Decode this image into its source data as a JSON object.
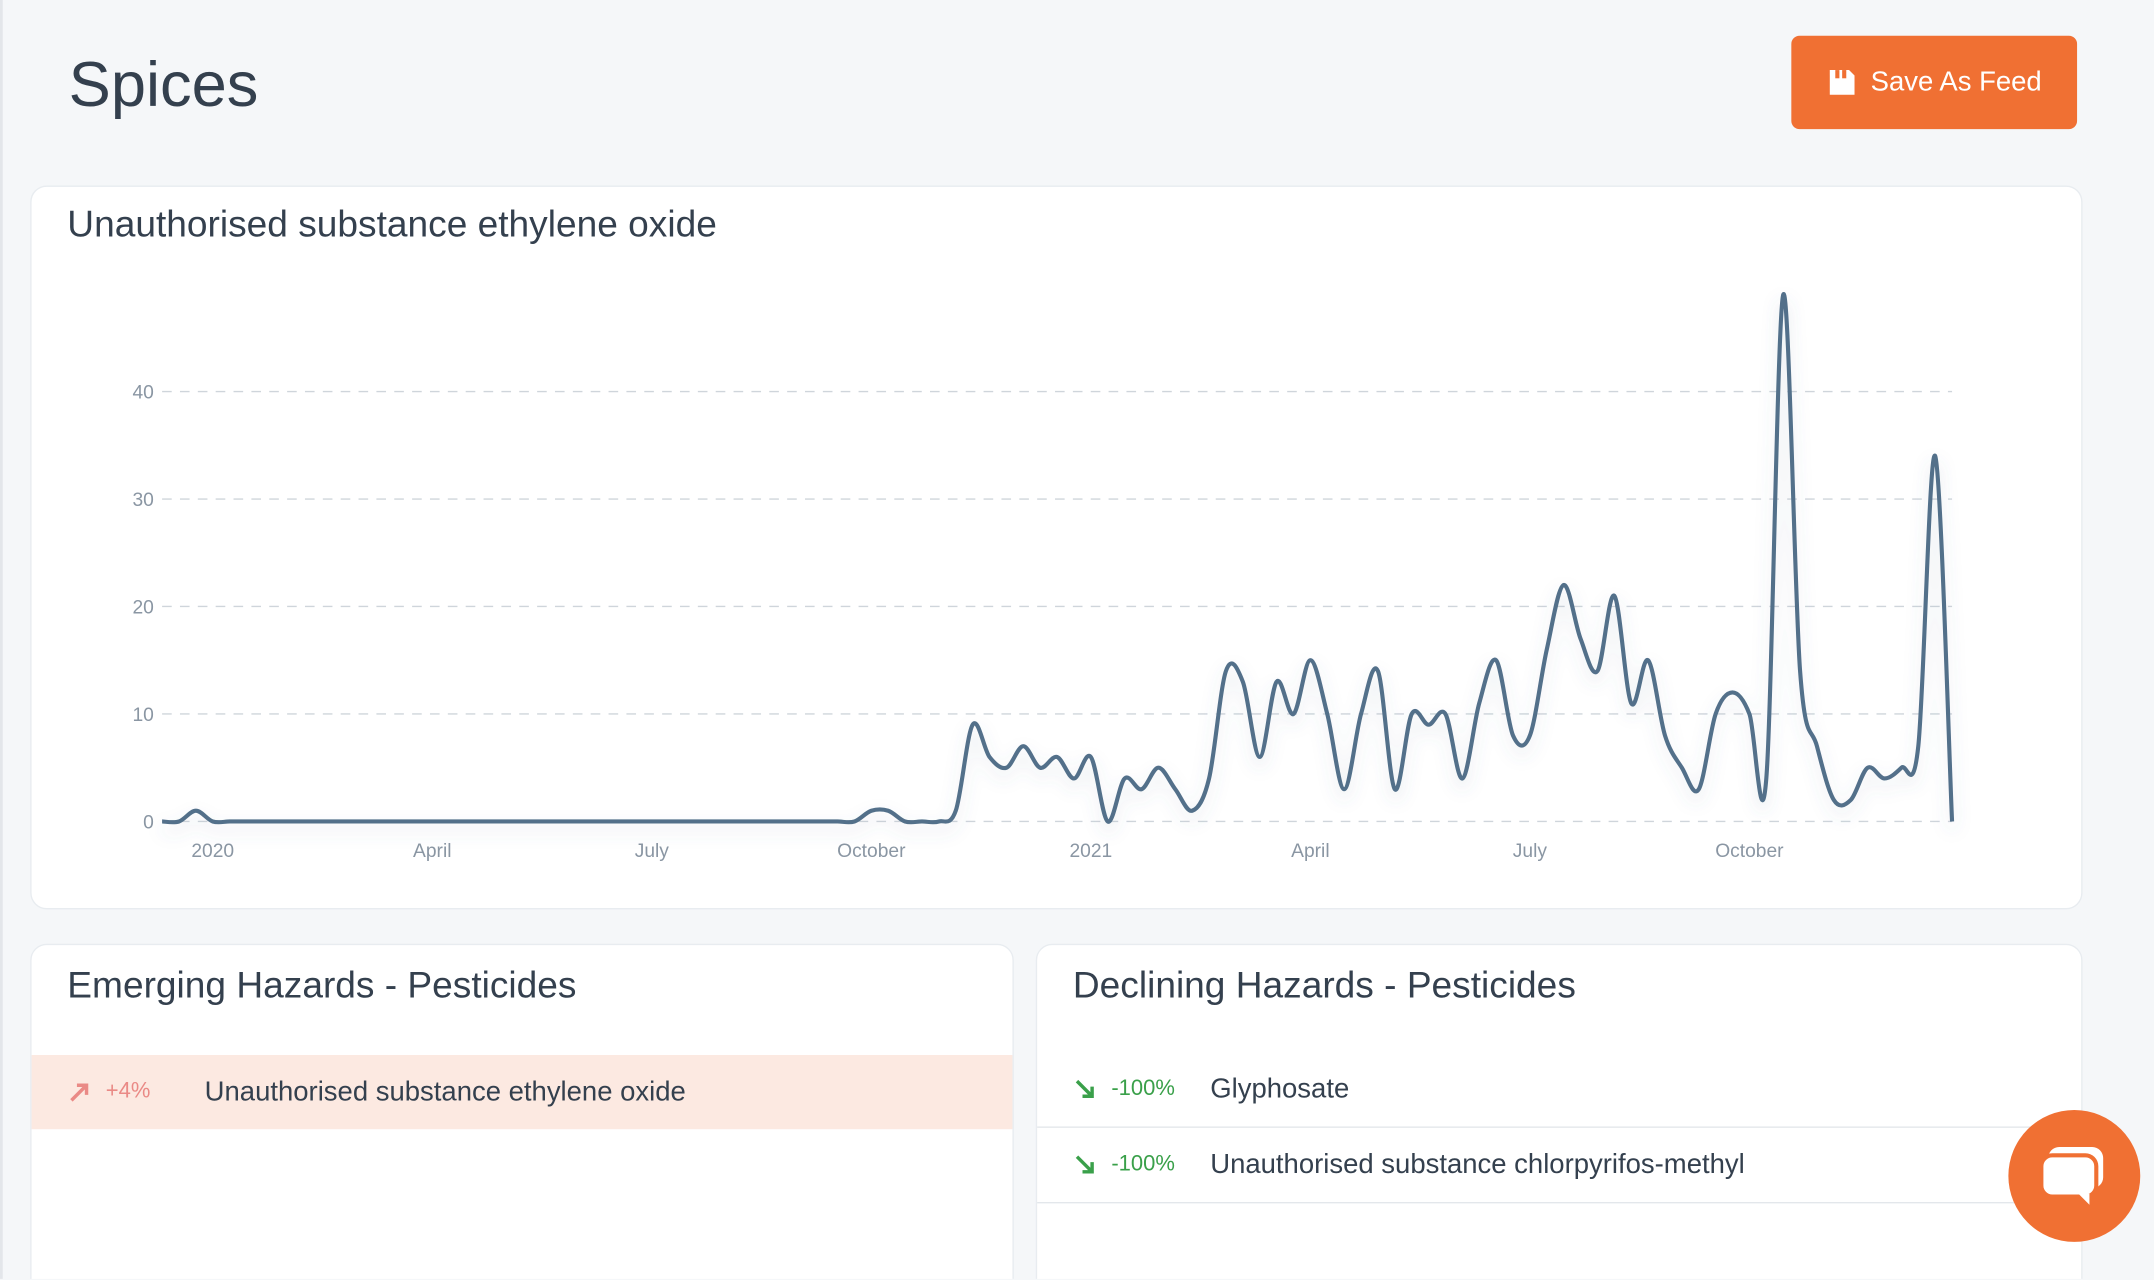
{
  "header": {
    "title": "Spices",
    "button": "Save As Feed"
  },
  "chart_data": {
    "type": "line",
    "title": "Unauthorised substance ethylene oxide",
    "categories": [
      null,
      null,
      null,
      "2020",
      null,
      null,
      null,
      null,
      null,
      null,
      null,
      null,
      null,
      null,
      null,
      null,
      "April",
      null,
      null,
      null,
      null,
      null,
      null,
      null,
      null,
      null,
      null,
      null,
      null,
      "July",
      null,
      null,
      null,
      null,
      null,
      null,
      null,
      null,
      null,
      null,
      null,
      null,
      "October",
      null,
      null,
      null,
      null,
      null,
      null,
      null,
      null,
      null,
      null,
      null,
      null,
      "2021",
      null,
      null,
      null,
      null,
      null,
      null,
      null,
      null,
      null,
      null,
      null,
      null,
      "April",
      null,
      null,
      null,
      null,
      null,
      null,
      null,
      null,
      null,
      null,
      null,
      null,
      "July",
      null,
      null,
      null,
      null,
      null,
      null,
      null,
      null,
      null,
      null,
      null,
      null,
      "October",
      null,
      null,
      null,
      null,
      null,
      null,
      null,
      null,
      null,
      null,
      null,
      null
    ],
    "values": [
      0,
      0,
      1,
      0,
      0,
      0,
      0,
      0,
      0,
      0,
      0,
      0,
      0,
      0,
      0,
      0,
      0,
      0,
      0,
      0,
      0,
      0,
      0,
      0,
      0,
      0,
      0,
      0,
      0,
      0,
      0,
      0,
      0,
      0,
      0,
      0,
      0,
      0,
      0,
      0,
      0,
      0,
      1,
      1,
      0,
      0,
      0,
      1,
      9,
      6,
      5,
      7,
      5,
      6,
      4,
      6,
      0,
      4,
      3,
      5,
      3,
      1,
      4,
      14,
      13,
      6,
      13,
      10,
      15,
      10,
      3,
      10,
      14,
      3,
      10,
      9,
      10,
      4,
      11,
      15,
      8,
      8,
      16,
      22,
      17,
      14,
      21,
      11,
      15,
      8,
      5,
      3,
      10,
      12,
      10,
      4,
      49,
      14,
      7,
      2,
      2,
      5,
      4,
      5,
      7,
      34,
      0
    ],
    "color": "#52708a",
    "ylim": [
      0,
      50
    ],
    "yticks": [
      0,
      10,
      20,
      30,
      40
    ],
    "grid": true
  },
  "emerging": {
    "title": "Emerging Hazards - Pesticides",
    "items": [
      {
        "change": "+4%",
        "name": "Unauthorised substance ethylene oxide"
      }
    ]
  },
  "declining": {
    "title": "Declining Hazards - Pesticides",
    "items": [
      {
        "change": "-100%",
        "name": "Glyphosate"
      },
      {
        "change": "-100%",
        "name": "Unauthorised substance chlorpyrifos-methyl"
      }
    ]
  }
}
